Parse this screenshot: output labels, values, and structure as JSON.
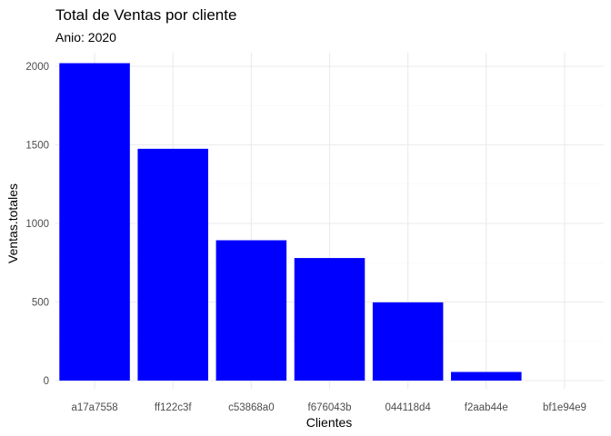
{
  "chart_data": {
    "type": "bar",
    "title": "Total de Ventas por cliente",
    "subtitle": "Anio: 2020",
    "xlabel": "Clientes",
    "ylabel": "Ventas.totales",
    "categories": [
      "a17a7558",
      "ff122c3f",
      "c53868a0",
      "f676043b",
      "044118d4",
      "f2aab44e",
      "bf1e94e9"
    ],
    "values": [
      2020,
      1475,
      893,
      780,
      498,
      55,
      0
    ],
    "ylim": [
      0,
      2080
    ],
    "yticks": [
      0,
      500,
      1000,
      1500,
      2000
    ],
    "ytick_labels": [
      "0",
      "500",
      "1000",
      "1500",
      "2000"
    ],
    "bar_color": "#0000FF",
    "grid": true,
    "legend": "none"
  },
  "colors": {
    "grid_major": "#EBEBEB",
    "grid_minor": "#F5F5F5",
    "tick_text": "#4D4D4D"
  }
}
